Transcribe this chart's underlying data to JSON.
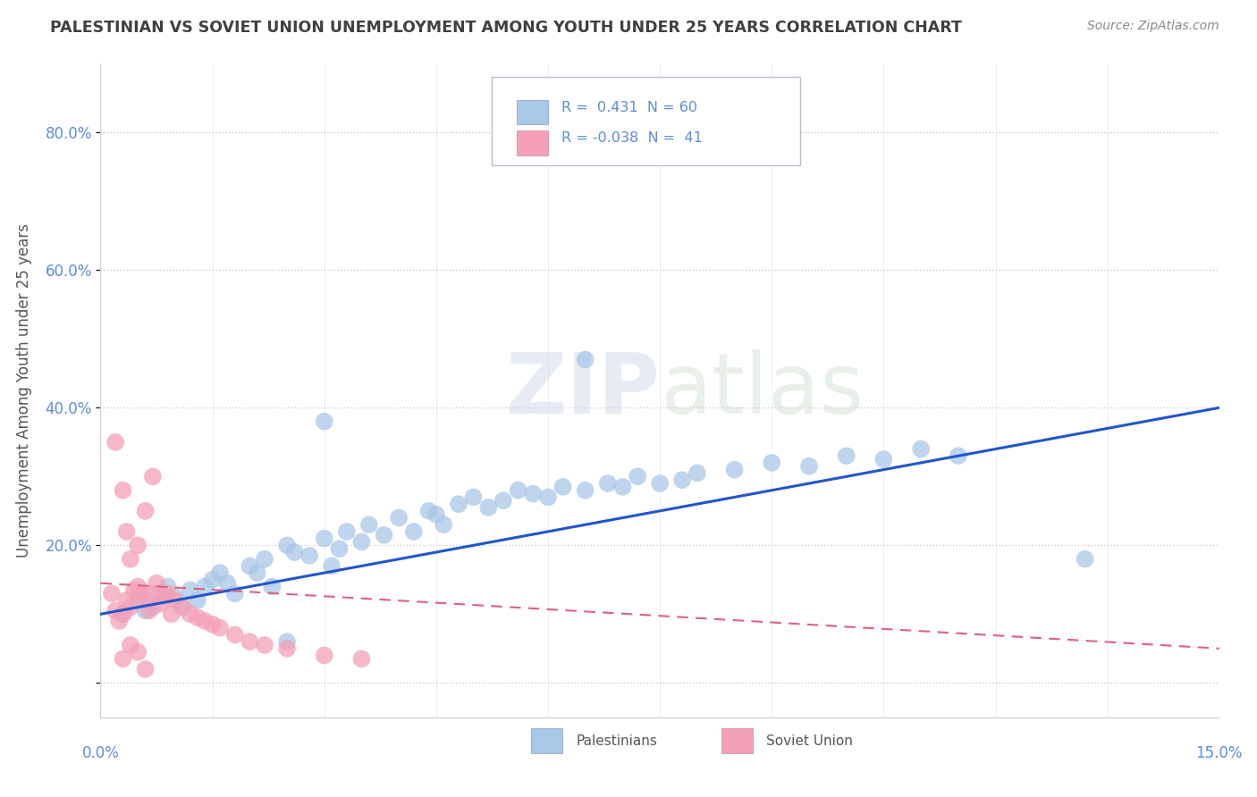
{
  "title": "PALESTINIAN VS SOVIET UNION UNEMPLOYMENT AMONG YOUTH UNDER 25 YEARS CORRELATION CHART",
  "source": "Source: ZipAtlas.com",
  "ylabel": "Unemployment Among Youth under 25 years",
  "xlim": [
    0.0,
    15.0
  ],
  "ylim": [
    -5.0,
    90.0
  ],
  "yticks": [
    0.0,
    20.0,
    40.0,
    60.0,
    80.0
  ],
  "yticklabels": [
    "",
    "20.0%",
    "40.0%",
    "60.0%",
    "80.0%"
  ],
  "R_blue": 0.431,
  "N_blue": 60,
  "R_pink": -0.038,
  "N_pink": 41,
  "blue_color": "#a8c8e8",
  "pink_color": "#f4a0b8",
  "blue_line_color": "#2255cc",
  "pink_line_color": "#e06080",
  "background_color": "#ffffff",
  "grid_color": "#c8c8d8",
  "title_color": "#404040",
  "axis_label_color": "#5b8dd9",
  "blue_scatter_x": [
    0.3,
    0.5,
    0.6,
    0.7,
    0.8,
    0.9,
    1.0,
    1.1,
    1.2,
    1.3,
    1.4,
    1.5,
    1.6,
    1.7,
    1.8,
    2.0,
    2.1,
    2.2,
    2.3,
    2.5,
    2.6,
    2.8,
    3.0,
    3.1,
    3.2,
    3.3,
    3.5,
    3.6,
    3.8,
    4.0,
    4.2,
    4.4,
    4.5,
    4.6,
    4.8,
    5.0,
    5.2,
    5.4,
    5.6,
    5.8,
    6.0,
    6.2,
    6.5,
    6.8,
    7.0,
    7.2,
    7.5,
    7.8,
    8.0,
    8.5,
    9.0,
    9.5,
    10.0,
    10.5,
    11.0,
    11.5,
    6.5,
    3.0,
    13.2,
    2.5
  ],
  "blue_scatter_y": [
    10.0,
    12.0,
    10.5,
    11.0,
    13.0,
    14.0,
    12.5,
    11.0,
    13.5,
    12.0,
    14.0,
    15.0,
    16.0,
    14.5,
    13.0,
    17.0,
    16.0,
    18.0,
    14.0,
    20.0,
    19.0,
    18.5,
    21.0,
    17.0,
    19.5,
    22.0,
    20.5,
    23.0,
    21.5,
    24.0,
    22.0,
    25.0,
    24.5,
    23.0,
    26.0,
    27.0,
    25.5,
    26.5,
    28.0,
    27.5,
    27.0,
    28.5,
    28.0,
    29.0,
    28.5,
    30.0,
    29.0,
    29.5,
    30.5,
    31.0,
    32.0,
    31.5,
    33.0,
    32.5,
    34.0,
    33.0,
    47.0,
    38.0,
    18.0,
    6.0
  ],
  "pink_scatter_x": [
    0.15,
    0.2,
    0.25,
    0.3,
    0.35,
    0.4,
    0.45,
    0.5,
    0.55,
    0.6,
    0.65,
    0.7,
    0.75,
    0.8,
    0.85,
    0.9,
    0.95,
    1.0,
    1.1,
    1.2,
    1.3,
    1.4,
    1.5,
    1.6,
    1.8,
    2.0,
    2.2,
    2.5,
    3.0,
    3.5,
    0.2,
    0.3,
    0.35,
    0.4,
    0.5,
    0.6,
    0.7,
    0.4,
    0.5,
    0.3,
    0.6
  ],
  "pink_scatter_y": [
    13.0,
    10.5,
    9.0,
    10.0,
    12.0,
    11.0,
    13.5,
    14.0,
    13.0,
    12.0,
    10.5,
    13.0,
    14.5,
    11.5,
    12.5,
    13.0,
    10.0,
    12.0,
    11.0,
    10.0,
    9.5,
    9.0,
    8.5,
    8.0,
    7.0,
    6.0,
    5.5,
    5.0,
    4.0,
    3.5,
    35.0,
    28.0,
    22.0,
    18.0,
    20.0,
    25.0,
    30.0,
    5.5,
    4.5,
    3.5,
    2.0
  ]
}
